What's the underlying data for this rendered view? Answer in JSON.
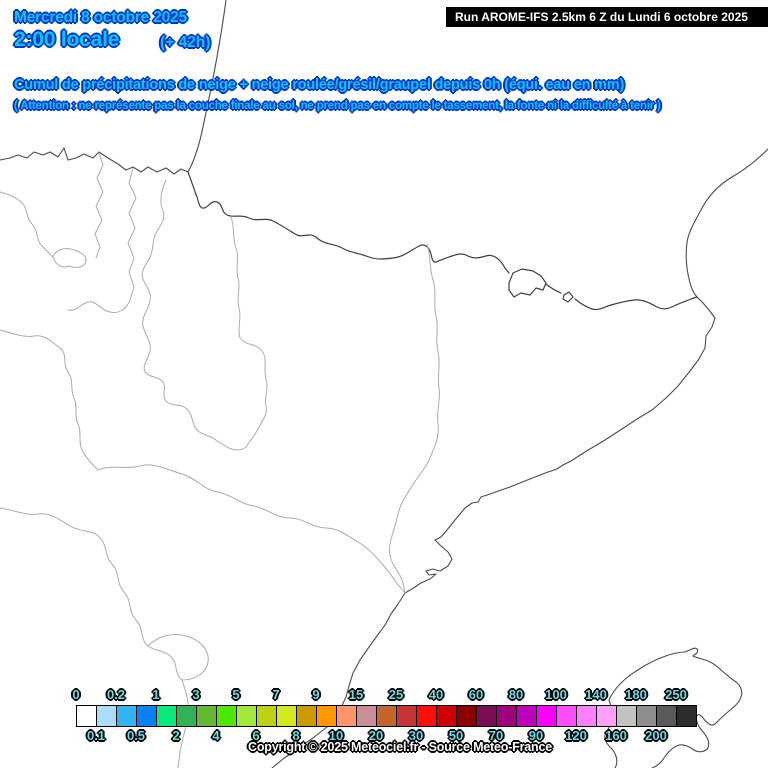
{
  "page": {
    "date": "Mercredi 8 octobre 2025",
    "time": "2:00 locale",
    "offset": "(+ 42h)",
    "run": "Run AROME-IFS 2.5km 6 Z du Lundi 6 octobre 2025",
    "title": "Cumul de précipitations de neige + neige roulée/grésil/graupel depuis 0h (équi. eau en mm)",
    "warning": "( Attention : ne représente pas la couche finale au sol, ne prend pas en compte le tassement, la fonte ni la difficulté à tenir )",
    "copyright": "Copyright © 2025 Meteociel.fr - Source Meteo-France"
  },
  "colors": {
    "text_cyan": "#00CCFF",
    "text_outline_navy": "#0033CC",
    "scale_label_cyan": "#63DEEA",
    "run_bg": "#000000",
    "run_fg": "#FFFFFF"
  },
  "legend": {
    "unit": "mm (équivalent eau)",
    "boundaries": [
      "0",
      "0.1",
      "0.2",
      "0.5",
      "1",
      "2",
      "3",
      "4",
      "5",
      "6",
      "7",
      "8",
      "9",
      "10",
      "15",
      "20",
      "25",
      "30",
      "40",
      "50",
      "60",
      "70",
      "80",
      "90",
      "100",
      "120",
      "140",
      "160",
      "180",
      "200",
      "250"
    ],
    "cell_colors": [
      "#FFFFFF",
      "#A8DEF8",
      "#30B4F4",
      "#0B80F4",
      "#0CE97C",
      "#2EB457",
      "#63B82F",
      "#4FE805",
      "#A2E83C",
      "#BFD114",
      "#D6E81F",
      "#CC9A00",
      "#FF9800",
      "#FF9569",
      "#CA8E95",
      "#C4662B",
      "#C93434",
      "#FB100C",
      "#CE0000",
      "#8B0000",
      "#7A0E56",
      "#A1007D",
      "#BC00BC",
      "#FA00FF",
      "#FE4DFE",
      "#FF80FF",
      "#FFA0FF",
      "#C2C2C2",
      "#8E8E8E",
      "#5A5A5A",
      "#2D2D2D"
    ]
  }
}
